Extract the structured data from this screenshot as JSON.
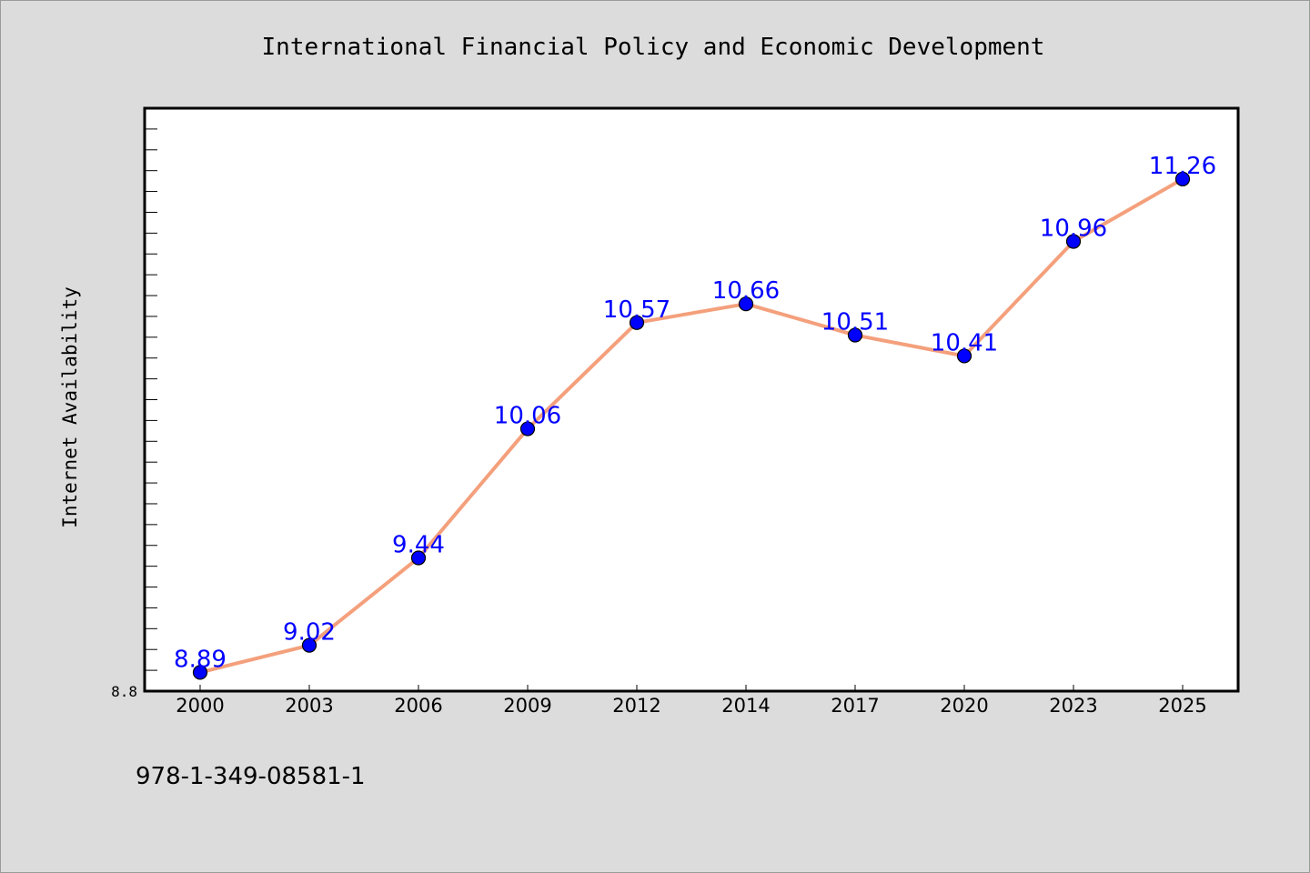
{
  "footer": {
    "isbn": "978-1-349-08581-1"
  },
  "chart_data": {
    "type": "line",
    "title": "International Financial Policy and Economic Development",
    "xlabel": "",
    "ylabel": "Internet Availability",
    "categories": [
      "2000",
      "2003",
      "2006",
      "2009",
      "2012",
      "2014",
      "2017",
      "2020",
      "2023",
      "2025"
    ],
    "values": [
      8.89,
      9.02,
      9.44,
      10.06,
      10.57,
      10.66,
      10.51,
      10.41,
      10.96,
      11.26
    ],
    "data_labels": [
      "8.89",
      "9.02",
      "9.44",
      "10.06",
      "10.57",
      "10.66",
      "10.51",
      "10.41",
      "10.96",
      "11.26"
    ],
    "ylim": [
      8.8,
      11.6
    ],
    "y_tick_labels": [
      "8.8"
    ],
    "grid": false,
    "colors": {
      "line": "#f4a07c",
      "marker": "#0000ff",
      "label": "#0000ff",
      "plot_bg": "#ffffff",
      "page_bg": "#dcdcdc"
    }
  }
}
